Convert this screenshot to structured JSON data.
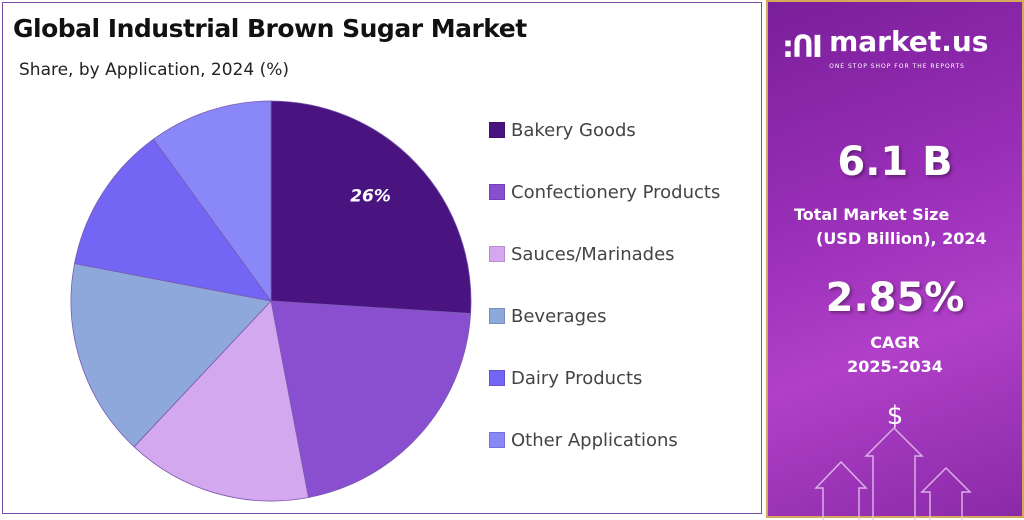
{
  "chart_data": {
    "type": "pie",
    "title": "Global Industrial Brown Sugar Market",
    "subtitle": "Share, by Application, 2024 (%)",
    "legend_position": "right",
    "slices": [
      {
        "label": "Bakery Goods",
        "value": 26,
        "color": "#4a1480",
        "data_label": "26%"
      },
      {
        "label": "Confectionery Products",
        "value": 21,
        "color": "#8a4fd0"
      },
      {
        "label": "Sauces/Marinades",
        "value": 15,
        "color": "#d4a8ef"
      },
      {
        "label": "Beverages",
        "value": 16,
        "color": "#8fa8dc"
      },
      {
        "label": "Dairy Products",
        "value": 12,
        "color": "#7466f5"
      },
      {
        "label": "Other Applications",
        "value": 10,
        "color": "#8a88f8"
      }
    ]
  },
  "panel": {
    "brand": "market.us",
    "tagline": "ONE STOP SHOP FOR THE REPORTS",
    "market_size": "6.1 B",
    "market_size_label_1": "Total Market Size",
    "market_size_label_2": "(USD Billion), 2024",
    "cagr": "2.85%",
    "cagr_label": "CAGR",
    "cagr_period": "2025-2034",
    "currency_symbol": "$"
  }
}
